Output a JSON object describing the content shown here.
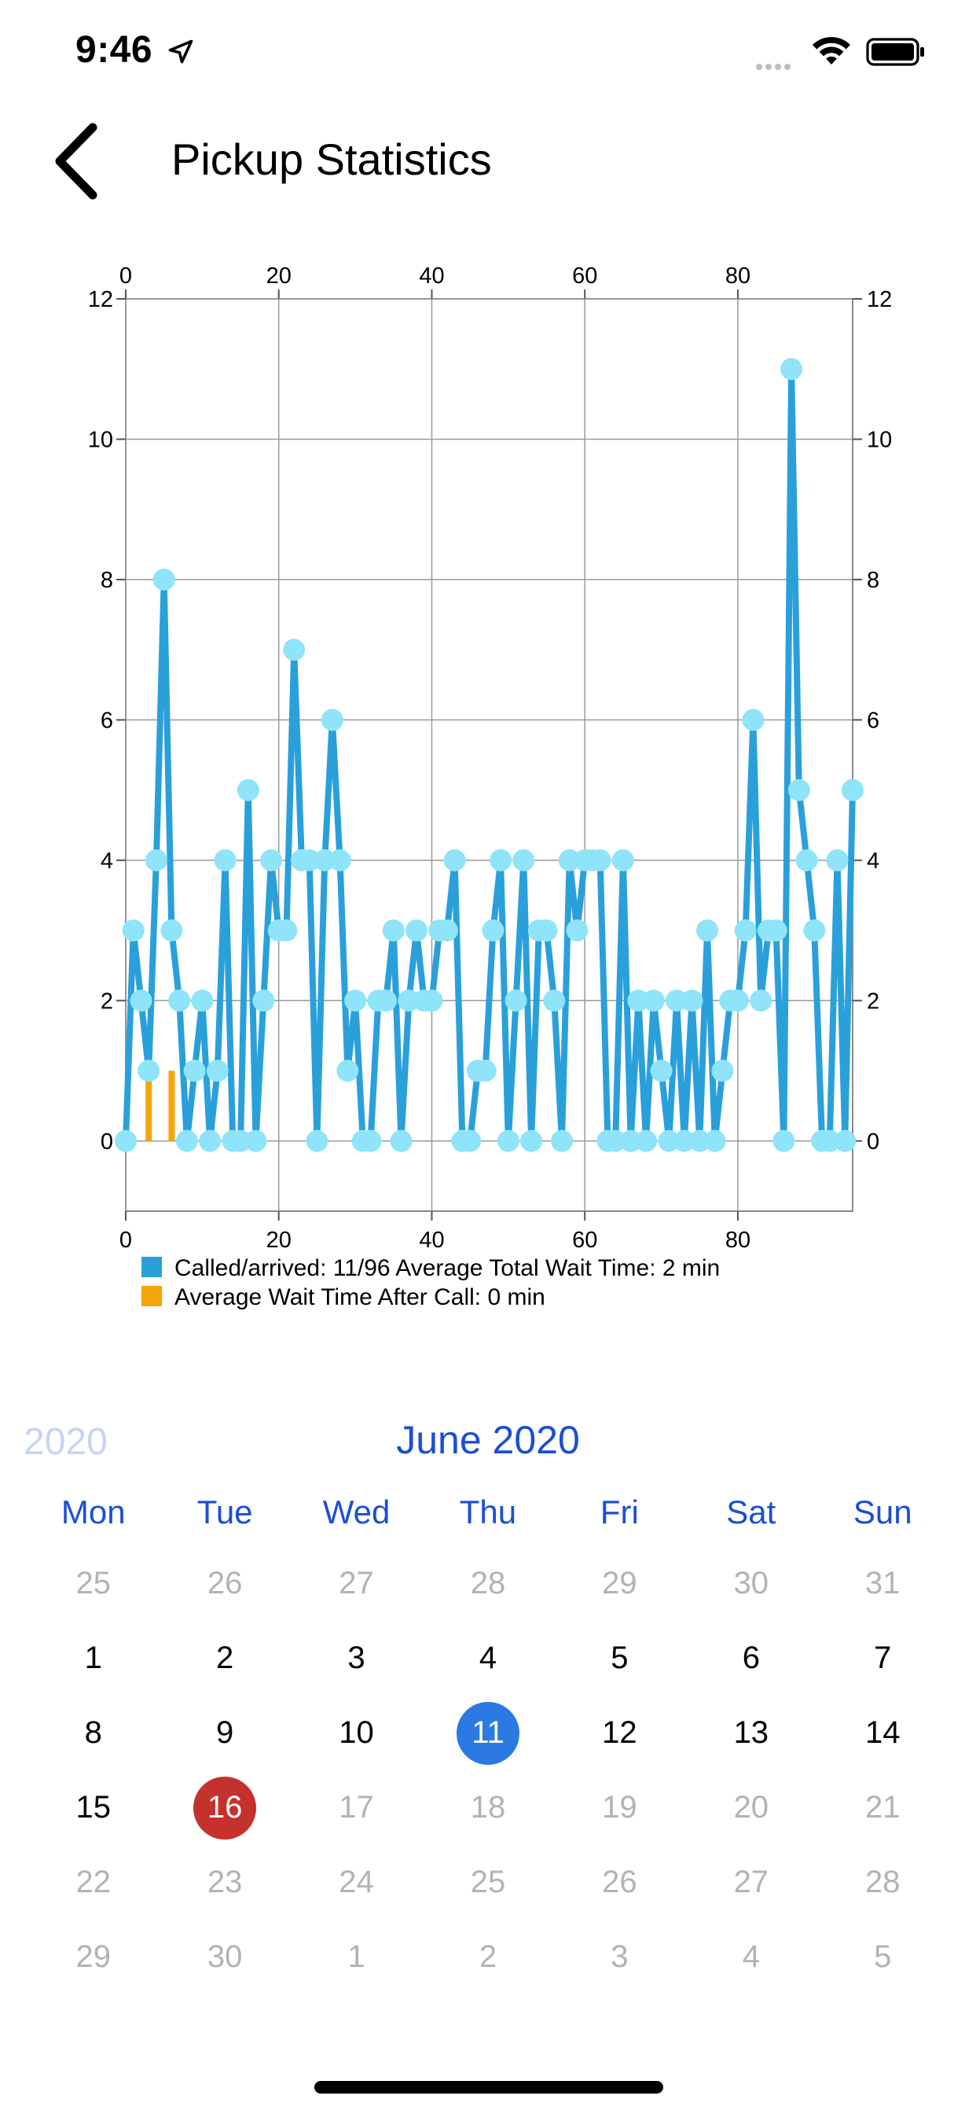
{
  "status_bar": {
    "time": "9:46"
  },
  "header": {
    "title": "Pickup Statistics"
  },
  "chart_data": {
    "type": "line",
    "x_ticks": [
      0,
      20,
      40,
      60,
      80
    ],
    "y_ticks": [
      0,
      2,
      4,
      6,
      8,
      10,
      12
    ],
    "xlim": [
      0,
      95
    ],
    "ylim": [
      -1,
      12
    ],
    "grid": true,
    "legend_position": "bottom-left",
    "series": [
      {
        "name": "Called/arrived: 11/96 Average Total Wait Time: 2 min",
        "color": "#2aa0db",
        "marker_color": "#8fe4fa",
        "x": [
          0,
          1,
          2,
          3,
          4,
          5,
          6,
          7,
          8,
          9,
          10,
          11,
          12,
          13,
          14,
          15,
          16,
          17,
          18,
          19,
          20,
          21,
          22,
          23,
          24,
          25,
          26,
          27,
          28,
          29,
          30,
          31,
          32,
          33,
          34,
          35,
          36,
          37,
          38,
          39,
          40,
          41,
          42,
          43,
          44,
          45,
          46,
          47,
          48,
          49,
          50,
          51,
          52,
          53,
          54,
          55,
          56,
          57,
          58,
          59,
          60,
          61,
          62,
          63,
          64,
          65,
          66,
          67,
          68,
          69,
          70,
          71,
          72,
          73,
          74,
          75,
          76,
          77,
          78,
          79,
          80,
          81,
          82,
          83,
          84,
          85,
          86,
          87,
          88,
          89,
          90,
          91,
          92,
          93,
          94,
          95
        ],
        "values": [
          0,
          3,
          2,
          1,
          4,
          8,
          3,
          2,
          0,
          1,
          2,
          0,
          1,
          4,
          0,
          0,
          5,
          0,
          2,
          4,
          3,
          3,
          7,
          4,
          4,
          0,
          4,
          6,
          4,
          1,
          2,
          0,
          0,
          2,
          2,
          3,
          0,
          2,
          3,
          2,
          2,
          3,
          3,
          4,
          0,
          0,
          1,
          1,
          3,
          4,
          0,
          2,
          4,
          0,
          3,
          3,
          2,
          0,
          4,
          3,
          4,
          4,
          4,
          0,
          0,
          4,
          0,
          2,
          0,
          2,
          1,
          0,
          2,
          0,
          2,
          0,
          3,
          0,
          1,
          2,
          2,
          3,
          6,
          2,
          3,
          3,
          0,
          11,
          5,
          4,
          3,
          0,
          0,
          4,
          0,
          5
        ]
      },
      {
        "name": "Average Wait Time After Call: 0 min",
        "color": "#f5a50a",
        "type": "bar",
        "x": [
          3,
          6
        ],
        "values": [
          1,
          1
        ]
      }
    ]
  },
  "calendar": {
    "prev_year": "2020",
    "month_label": "June 2020",
    "weekdays": [
      "Mon",
      "Tue",
      "Wed",
      "Thu",
      "Fri",
      "Sat",
      "Sun"
    ],
    "weeks": [
      [
        {
          "d": "25",
          "s": "muted"
        },
        {
          "d": "26",
          "s": "muted"
        },
        {
          "d": "27",
          "s": "muted"
        },
        {
          "d": "28",
          "s": "muted"
        },
        {
          "d": "29",
          "s": "muted"
        },
        {
          "d": "30",
          "s": "muted"
        },
        {
          "d": "31",
          "s": "muted"
        }
      ],
      [
        {
          "d": "1",
          "s": "normal"
        },
        {
          "d": "2",
          "s": "normal"
        },
        {
          "d": "3",
          "s": "normal"
        },
        {
          "d": "4",
          "s": "normal"
        },
        {
          "d": "5",
          "s": "normal"
        },
        {
          "d": "6",
          "s": "normal"
        },
        {
          "d": "7",
          "s": "normal"
        }
      ],
      [
        {
          "d": "8",
          "s": "normal"
        },
        {
          "d": "9",
          "s": "normal"
        },
        {
          "d": "10",
          "s": "normal"
        },
        {
          "d": "11",
          "s": "selected"
        },
        {
          "d": "12",
          "s": "normal"
        },
        {
          "d": "13",
          "s": "normal"
        },
        {
          "d": "14",
          "s": "normal"
        }
      ],
      [
        {
          "d": "15",
          "s": "normal"
        },
        {
          "d": "16",
          "s": "today"
        },
        {
          "d": "17",
          "s": "muted"
        },
        {
          "d": "18",
          "s": "muted"
        },
        {
          "d": "19",
          "s": "muted"
        },
        {
          "d": "20",
          "s": "muted"
        },
        {
          "d": "21",
          "s": "muted"
        }
      ],
      [
        {
          "d": "22",
          "s": "muted"
        },
        {
          "d": "23",
          "s": "muted"
        },
        {
          "d": "24",
          "s": "muted"
        },
        {
          "d": "25",
          "s": "muted"
        },
        {
          "d": "26",
          "s": "muted"
        },
        {
          "d": "27",
          "s": "muted"
        },
        {
          "d": "28",
          "s": "muted"
        }
      ],
      [
        {
          "d": "29",
          "s": "muted"
        },
        {
          "d": "30",
          "s": "muted"
        },
        {
          "d": "1",
          "s": "muted"
        },
        {
          "d": "2",
          "s": "muted"
        },
        {
          "d": "3",
          "s": "muted"
        },
        {
          "d": "4",
          "s": "muted"
        },
        {
          "d": "5",
          "s": "muted"
        }
      ]
    ]
  }
}
